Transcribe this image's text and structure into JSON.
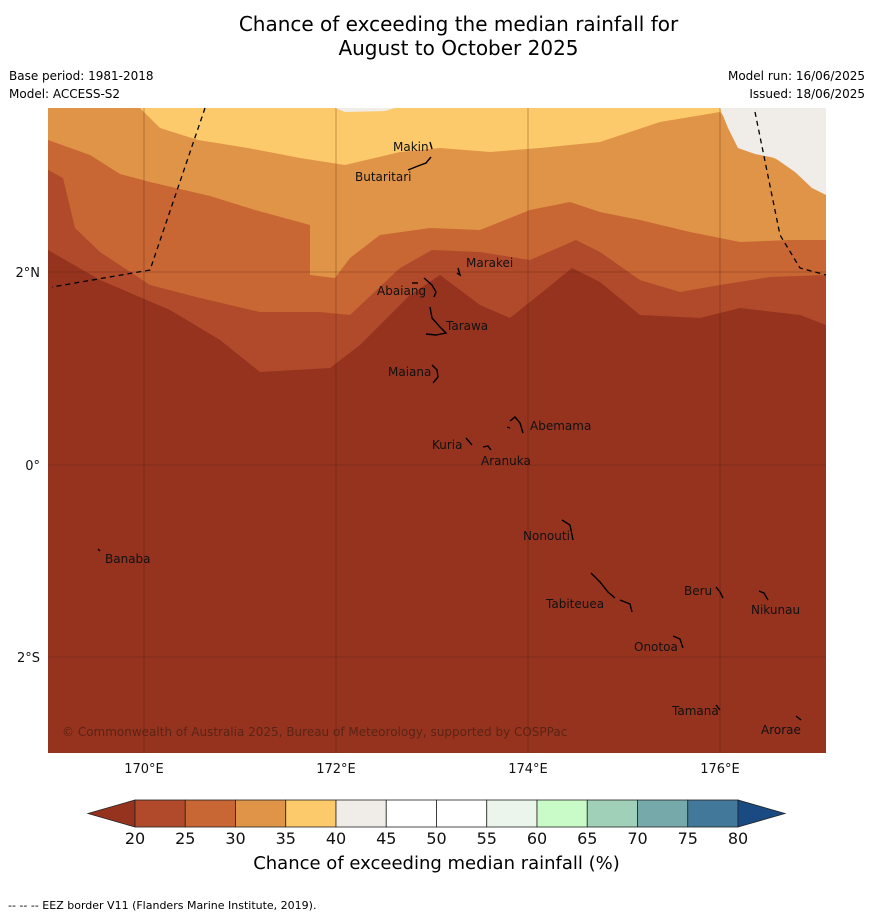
{
  "title_line1": "Chance of exceeding the median rainfall for",
  "title_line2": "August to October 2025",
  "meta_left": [
    "Base period: 1981-2018",
    "Model: ACCESS-S2"
  ],
  "meta_right": [
    "Model run: 16/06/2025",
    "Issued: 18/06/2025"
  ],
  "map": {
    "lon_range": [
      169,
      177.1
    ],
    "lat_range": [
      -3.0,
      3.7
    ],
    "lon_ticks": [
      {
        "value": 170,
        "label": "170°E"
      },
      {
        "value": 172,
        "label": "172°E"
      },
      {
        "value": 174,
        "label": "174°E"
      },
      {
        "value": 176,
        "label": "176°E"
      }
    ],
    "lat_ticks": [
      {
        "value": 2,
        "label": "2°N"
      },
      {
        "value": 0,
        "label": "0°"
      },
      {
        "value": -2,
        "label": "2°S"
      }
    ],
    "grid": true,
    "copyright": "© Commonwealth of Australia 2025, Bureau of Meteorology, supported by COSPPac",
    "islands": [
      {
        "name": "Makin",
        "lon": 173.0,
        "lat": 3.3
      },
      {
        "name": "Butaritari",
        "lon": 172.8,
        "lat": 3.1
      },
      {
        "name": "Marakei",
        "lon": 173.3,
        "lat": 2.0
      },
      {
        "name": "Abaiang",
        "lon": 172.9,
        "lat": 1.8
      },
      {
        "name": "Tarawa",
        "lon": 173.0,
        "lat": 1.4
      },
      {
        "name": "Maiana",
        "lon": 173.0,
        "lat": 0.9
      },
      {
        "name": "Abemama",
        "lon": 173.9,
        "lat": 0.4
      },
      {
        "name": "Kuria",
        "lon": 173.4,
        "lat": 0.2
      },
      {
        "name": "Aranuka",
        "lon": 173.6,
        "lat": 0.15
      },
      {
        "name": "Nonouti",
        "lon": 174.4,
        "lat": -0.65
      },
      {
        "name": "Banaba",
        "lon": 169.5,
        "lat": -0.85
      },
      {
        "name": "Tabiteuea",
        "lon": 174.8,
        "lat": -1.3
      },
      {
        "name": "Beru",
        "lon": 176.0,
        "lat": -1.3
      },
      {
        "name": "Nikunau",
        "lon": 176.4,
        "lat": -1.35
      },
      {
        "name": "Onotoa",
        "lon": 175.6,
        "lat": -1.8
      },
      {
        "name": "Tamana",
        "lon": 176.0,
        "lat": -2.5
      },
      {
        "name": "Arorae",
        "lon": 176.8,
        "lat": -2.65
      }
    ]
  },
  "colorbar": {
    "title": "Chance of exceeding median rainfall (%)",
    "ticks": [
      "20",
      "25",
      "30",
      "35",
      "40",
      "45",
      "50",
      "55",
      "60",
      "65",
      "70",
      "75",
      "80"
    ],
    "colors": [
      "#b04a2a",
      "#c86733",
      "#e09448",
      "#fcca6a",
      "#f0ece8",
      "#ffffff",
      "#ffffff",
      "#ebf5eb",
      "#c9fbc9",
      "#a0d0b8",
      "#76a9aa",
      "#42789a"
    ],
    "under_color": "#96331f",
    "over_color": "#1a4a82"
  },
  "footnote": "--  --  -- EEZ border V11 (Flanders Marine Institute, 2019)."
}
